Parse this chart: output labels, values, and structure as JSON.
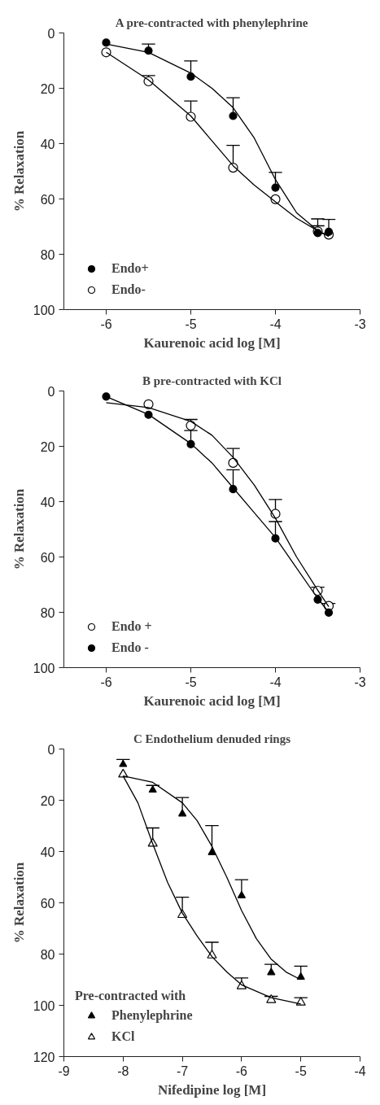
{
  "chart_data": [
    {
      "type": "scatter",
      "title": "A pre-contracted with phenylephrine",
      "xlabel": "Kaurenoic acid log [M]",
      "ylabel": "% Relaxation",
      "xlim": [
        -6.5,
        -3
      ],
      "xticks": [
        -6,
        -5,
        -4,
        -3
      ],
      "ylim": [
        100,
        0
      ],
      "yticks": [
        0,
        20,
        40,
        60,
        80,
        100
      ],
      "grid": false,
      "legend": "bottom left",
      "marker": "circle",
      "series": [
        {
          "name": "Endo+",
          "color": "#000000",
          "x": [
            -6,
            -5.5,
            -5,
            -4.5,
            -4,
            -3.5,
            -3.37
          ],
          "values": [
            3.5,
            6.4,
            15.8,
            30.0,
            55.9,
            72.3,
            71.9
          ],
          "errors": [
            null,
            [
              4.0,
              6.4
            ],
            [
              10.1,
              15.8
            ],
            [
              23.4,
              30.0
            ],
            [
              50.4,
              55.9
            ],
            [
              67.2,
              72.3
            ],
            [
              67.4,
              71.9
            ]
          ]
        },
        {
          "name": "Endo-",
          "color": "#ffffff",
          "x": [
            -6,
            -5.5,
            -5,
            -4.5,
            -4,
            -3.5,
            -3.37
          ],
          "values": [
            7.0,
            17.5,
            30.3,
            48.7,
            60.1,
            71.7,
            72.9
          ],
          "errors": [
            null,
            [
              15.4,
              17.5
            ],
            [
              24.6,
              30.3
            ],
            [
              40.6,
              48.7
            ],
            null,
            [
              69.7,
              71.7
            ],
            null
          ]
        },
        {
          "type": "line",
          "marker": "none",
          "color": "#000000",
          "x": [
            -6,
            -5.5,
            -5,
            -4.75,
            -4.5,
            -4.25,
            -4,
            -3.75,
            -3.5,
            -3.37
          ],
          "values": [
            4,
            7,
            14.5,
            20,
            27,
            38,
            53,
            65,
            71.5,
            73.5
          ]
        },
        {
          "type": "line",
          "marker": "none",
          "color": "#000000",
          "x": [
            -6,
            -5.5,
            -5,
            -4.75,
            -4.5,
            -4.25,
            -4,
            -3.75,
            -3.5,
            -3.37
          ],
          "values": [
            7,
            17,
            30,
            39,
            48,
            55,
            61,
            67,
            71.5,
            73.5
          ]
        }
      ]
    },
    {
      "type": "scatter",
      "title": "B pre-contracted with KCl",
      "xlabel": "Kaurenoic acid log [M]",
      "ylabel": "% Relaxation",
      "xlim": [
        -6.5,
        -3
      ],
      "xticks": [
        -6,
        -5,
        -4,
        -3
      ],
      "ylim": [
        100,
        0
      ],
      "yticks": [
        0,
        20,
        40,
        60,
        80,
        100
      ],
      "grid": false,
      "legend": "bottom left",
      "marker": "circle",
      "series": [
        {
          "name": "Endo +",
          "color": "#ffffff",
          "x": [
            -5.5,
            -5,
            -4.5,
            -4,
            -3.5,
            -3.37
          ],
          "values": [
            4.8,
            12.5,
            26.0,
            44.4,
            72.2,
            77.7
          ],
          "errors": [
            null,
            [
              10.3,
              12.5
            ],
            [
              20.8,
              26.0
            ],
            [
              39.2,
              44.4
            ],
            [
              70.9,
              72.2
            ],
            [
              76.8,
              77.7
            ]
          ]
        },
        {
          "name": "Endo -",
          "color": "#000000",
          "x": [
            -6,
            -5.5,
            -5,
            -4.5,
            -4,
            -3.5,
            -3.37
          ],
          "values": [
            2.0,
            8.6,
            19.2,
            35.5,
            53.3,
            75.4,
            80.1
          ],
          "errors": [
            null,
            null,
            [
              14.3,
              19.2
            ],
            [
              28.5,
              35.5
            ],
            [
              47.2,
              53.3
            ],
            null,
            null
          ]
        },
        {
          "type": "line",
          "marker": "none",
          "color": "#000000",
          "x": [
            -6,
            -5.5,
            -5,
            -4.75,
            -4.5,
            -4.25,
            -4,
            -3.75,
            -3.5,
            -3.37
          ],
          "values": [
            4.2,
            6,
            11,
            16,
            24,
            34,
            46,
            60,
            72,
            78
          ]
        },
        {
          "type": "line",
          "marker": "none",
          "color": "#000000",
          "x": [
            -6,
            -5.5,
            -5,
            -4.75,
            -4.5,
            -4.25,
            -4,
            -3.75,
            -3.5,
            -3.37
          ],
          "values": [
            2,
            8.5,
            19,
            26,
            35,
            44,
            53,
            64,
            75,
            80
          ]
        }
      ]
    },
    {
      "type": "scatter",
      "title": "C Endothelium denuded rings",
      "xlabel": "Nifedipine log [M]",
      "ylabel": "% Relaxation",
      "xlim": [
        -9,
        -4
      ],
      "xticks": [
        -9,
        -8,
        -7,
        -6,
        -5,
        -4
      ],
      "ylim": [
        120,
        0
      ],
      "yticks": [
        0,
        20,
        40,
        60,
        80,
        100,
        120
      ],
      "grid": false,
      "legend": "bottom left",
      "legend_title": "Pre-contracted with",
      "marker": "triangle",
      "series": [
        {
          "name": "Phenylephrine",
          "color": "#000000",
          "x": [
            -8,
            -7.5,
            -7,
            -6.5,
            -6,
            -5.5,
            -5
          ],
          "values": [
            6.0,
            16.0,
            25.3,
            40.4,
            57.2,
            87.2,
            89.0
          ],
          "errors": [
            [
              4.1,
              6.0
            ],
            [
              14.2,
              16.0
            ],
            [
              18.9,
              25.3
            ],
            [
              29.9,
              40.4
            ],
            [
              51.0,
              57.2
            ],
            [
              84.0,
              87.2
            ],
            [
              84.7,
              89.0
            ]
          ]
        },
        {
          "name": "KCl",
          "color": "#ffffff",
          "x": [
            -8,
            -7.5,
            -7,
            -6.5,
            -6,
            -5.5,
            -5
          ],
          "values": [
            9.9,
            36.9,
            64.7,
            80.5,
            92.5,
            97.9,
            98.9
          ],
          "errors": [
            null,
            [
              30.8,
              36.9
            ],
            [
              57.8,
              64.7
            ],
            [
              75.4,
              80.5
            ],
            [
              89.3,
              92.5
            ],
            [
              96.5,
              97.9
            ],
            [
              97.0,
              98.9
            ]
          ]
        },
        {
          "type": "line",
          "marker": "none",
          "color": "#000000",
          "x": [
            -8,
            -7.5,
            -7,
            -6.75,
            -6.5,
            -6.25,
            -6,
            -5.75,
            -5.5,
            -5.25,
            -5
          ],
          "values": [
            10.5,
            13,
            21,
            28,
            38,
            50,
            63,
            74,
            82,
            87,
            90
          ]
        },
        {
          "type": "line",
          "marker": "none",
          "color": "#000000",
          "x": [
            -8,
            -7.75,
            -7.5,
            -7.25,
            -7,
            -6.75,
            -6.5,
            -6.25,
            -6,
            -5.5,
            -5
          ],
          "values": [
            10.5,
            21,
            37,
            52,
            64,
            73,
            81,
            87,
            92,
            97,
            99.5
          ]
        }
      ]
    }
  ]
}
